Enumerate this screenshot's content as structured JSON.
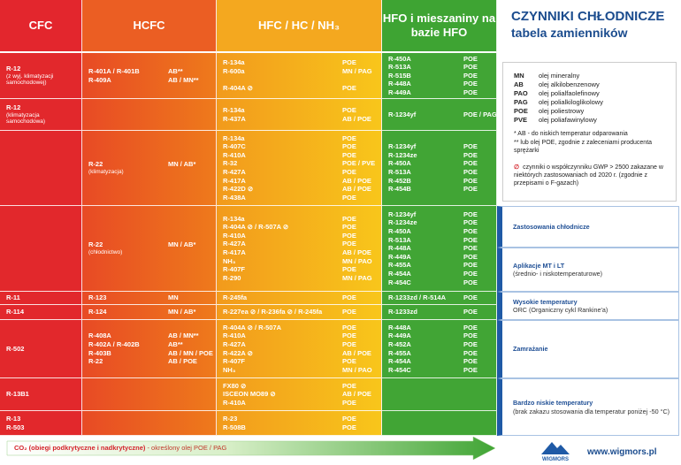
{
  "headers": {
    "cfc": "CFC",
    "hcfc": "HCFC",
    "hfc": "HFC / HC / NH₃",
    "hfo": "HFO i mieszaniny na bazie HFO"
  },
  "rows": [
    {
      "cfc": {
        "names": [
          "R-12"
        ],
        "note": "(z wyj. klimatyzacji samochodowej)"
      },
      "hcfc": [
        [
          {
            "name": "R-401A / R-401B",
            "oil": "AB**"
          },
          {
            "name": "R-409A",
            "oil": "AB / MN**"
          }
        ]
      ],
      "hfc": [
        [
          {
            "name": "R-134a",
            "oil": "POE"
          },
          {
            "name": "R-600a",
            "oil": "MN / PAG"
          }
        ],
        [
          {
            "name": "R-404A ⊘",
            "oil": "POE"
          }
        ]
      ],
      "hfo": [
        [
          {
            "name": "R-450A",
            "oil": "POE"
          },
          {
            "name": "R-513A",
            "oil": "POE"
          },
          {
            "name": "R-515B",
            "oil": "POE"
          },
          {
            "name": "R-448A",
            "oil": "POE"
          },
          {
            "name": "R-449A",
            "oil": "POE"
          }
        ]
      ]
    },
    {
      "cfc": {
        "names": [
          "R-12"
        ],
        "note": "(klimatyzacja samochodowa)"
      },
      "hfc": [
        [
          {
            "name": "R-134a",
            "oil": "POE"
          },
          {
            "name": "R-437A",
            "oil": "AB / POE"
          }
        ]
      ],
      "hfo": [
        [
          {
            "name": "R-1234yf",
            "oil": "POE / PAG"
          }
        ]
      ]
    },
    {
      "hcfc": [
        [
          {
            "name": "R-22",
            "note": "(klimatyzacja)",
            "oil": "MN / AB*"
          }
        ]
      ],
      "hfc": [
        [
          {
            "name": "R-134a",
            "oil": "POE"
          },
          {
            "name": "R-407C",
            "oil": "POE"
          },
          {
            "name": "R-410A",
            "oil": "POE"
          },
          {
            "name": "R-32",
            "oil": "POE / PVE"
          },
          {
            "name": "R-427A",
            "oil": "POE"
          },
          {
            "name": "R-417A",
            "oil": "AB / POE"
          },
          {
            "name": "R-422D ⊘",
            "oil": "AB / POE"
          },
          {
            "name": "R-438A",
            "oil": "POE"
          }
        ]
      ],
      "hfo": [
        [
          {
            "name": "R-1234yf",
            "oil": "POE"
          },
          {
            "name": "R-1234ze",
            "oil": "POE"
          },
          {
            "name": "R-450A",
            "oil": "POE"
          },
          {
            "name": "R-513A",
            "oil": "POE"
          },
          {
            "name": "R-452B",
            "oil": "POE"
          },
          {
            "name": "R-454B",
            "oil": "POE"
          }
        ]
      ]
    },
    {
      "hcfc": [
        [
          {
            "name": "R-22",
            "note": "(chłodnictwo)",
            "oil": "MN / AB*"
          }
        ]
      ],
      "hfc": [
        [
          {
            "name": "R-134a",
            "oil": "POE"
          },
          {
            "name": "R-404A ⊘ / R-507A ⊘",
            "oil": "POE"
          },
          {
            "name": "R-410A",
            "oil": "POE"
          },
          {
            "name": "R-427A",
            "oil": "POE"
          },
          {
            "name": "R-417A",
            "oil": "AB / POE"
          },
          {
            "name": "NH₃",
            "oil": "MN / PAO"
          },
          {
            "name": "R-407F",
            "oil": "POE"
          },
          {
            "name": "R-290",
            "oil": "MN / PAG"
          }
        ]
      ],
      "hfo": [
        [
          {
            "name": "R-1234yf",
            "oil": "POE"
          },
          {
            "name": "R-1234ze",
            "oil": "POE"
          },
          {
            "name": "R-450A",
            "oil": "POE"
          },
          {
            "name": "R-513A",
            "oil": "POE"
          },
          {
            "name": "R-448A",
            "oil": "POE"
          },
          {
            "name": "R-449A",
            "oil": "POE"
          },
          {
            "name": "R-455A",
            "oil": "POE"
          },
          {
            "name": "R-454A",
            "oil": "POE"
          },
          {
            "name": "R-454C",
            "oil": "POE"
          }
        ]
      ]
    },
    {
      "cfc": {
        "names": [
          "R-11"
        ]
      },
      "hcfc": [
        [
          {
            "name": "R-123",
            "oil": "MN"
          }
        ]
      ],
      "hfc": [
        [
          {
            "name": "R-245fa",
            "oil": "POE"
          }
        ]
      ],
      "hfo": [
        [
          {
            "name": "R-1233zd / R-514A",
            "oil": "POE"
          }
        ]
      ]
    },
    {
      "cfc": {
        "names": [
          "R-114"
        ]
      },
      "hcfc": [
        [
          {
            "name": "R-124",
            "oil": "MN / AB*"
          }
        ]
      ],
      "hfc": [
        [
          {
            "name": "R-227ea ⊘ / R-236fa ⊘ / R-245fa",
            "oil": "POE"
          }
        ]
      ],
      "hfo": [
        [
          {
            "name": "R-1233zd",
            "oil": "POE"
          }
        ]
      ]
    },
    {
      "cfc": {
        "names": [
          "R-502"
        ]
      },
      "hcfc": [
        [
          {
            "name": "R-408A",
            "oil": "AB / MN**"
          },
          {
            "name": "R-402A / R-402B",
            "oil": "AB**"
          },
          {
            "name": "R-403B",
            "oil": "AB / MN / POE"
          },
          {
            "name": "R-22",
            "oil": "AB / POE"
          }
        ]
      ],
      "hfc": [
        [
          {
            "name": "R-404A ⊘ / R-507A",
            "oil": "POE"
          },
          {
            "name": "R-410A",
            "oil": "POE"
          },
          {
            "name": "R-427A",
            "oil": "POE"
          },
          {
            "name": "R-422A ⊘",
            "oil": "AB / POE"
          },
          {
            "name": "R-407F",
            "oil": "POE"
          },
          {
            "name": "NH₃",
            "oil": "MN / PAO"
          }
        ]
      ],
      "hfo": [
        [
          {
            "name": "R-448A",
            "oil": "POE"
          },
          {
            "name": "R-449A",
            "oil": "POE"
          },
          {
            "name": "R-452A",
            "oil": "POE"
          },
          {
            "name": "R-455A",
            "oil": "POE"
          },
          {
            "name": "R-454A",
            "oil": "POE"
          },
          {
            "name": "R-454C",
            "oil": "POE"
          }
        ]
      ]
    },
    {
      "cfc": {
        "names": [
          "R-13B1"
        ]
      },
      "hfc": [
        [
          {
            "name": "FX80 ⊘",
            "oil": "POE"
          },
          {
            "name": "ISCEON MO89 ⊘",
            "oil": "AB / POE"
          },
          {
            "name": "R-410A",
            "oil": "POE"
          }
        ]
      ]
    },
    {
      "cfc": {
        "names": [
          "R-13",
          "R-503"
        ]
      },
      "hfc": [
        [
          {
            "name": "R-23",
            "oil": "POE"
          },
          {
            "name": "R-508B",
            "oil": "POE"
          }
        ]
      ]
    }
  ],
  "panel": {
    "title": "CZYNNIKI CHŁODNICZE",
    "subtitle": "tabela zamienników",
    "legend": [
      {
        "abbr": "MN",
        "text": "olej mineralny"
      },
      {
        "abbr": "AB",
        "text": "olej alkilobenzenowy"
      },
      {
        "abbr": "PAO",
        "text": "olej polialfaolefinowy"
      },
      {
        "abbr": "PAG",
        "text": "olej polialkiloglikolowy"
      },
      {
        "abbr": "POE",
        "text": "olej poliestrowy"
      },
      {
        "abbr": "PVE",
        "text": "olej poliafawinylowy"
      }
    ],
    "notes": [
      "* AB - do niskich temperatur odparowania",
      "** lub olej POE, zgodnie z zaleceniami producenta sprężarki"
    ],
    "gwp_symbol": "∅",
    "gwp_note": "czynniki o współczynniku GWP > 2500 zakazane w niektórych zastosowaniach od 2020 r. (zgodnie z przepisami o F-gazach)",
    "applications": [
      {
        "title": "Zastosowania chłodnicze"
      },
      {
        "title": "Aplikacje MT i LT",
        "text": "(średnio- i niskotemperaturowe)"
      },
      {
        "title": "Wysokie temperatury",
        "text": "ORC (Organiczny cykl Rankine'a)"
      },
      {
        "title": "Zamrażanie"
      },
      {
        "title": "Bardzo niskie temperatury",
        "text": "(brak zakazu stosowania dla temperatur poniżej -50 °C)"
      }
    ]
  },
  "footer": {
    "co2": "CO₂ (obiegi podkrytyczne i nadkrytyczne)",
    "co2_oil": "- określony olej POE / PAG",
    "logo": "WIGMORS",
    "website": "www.wigmors.pl"
  }
}
